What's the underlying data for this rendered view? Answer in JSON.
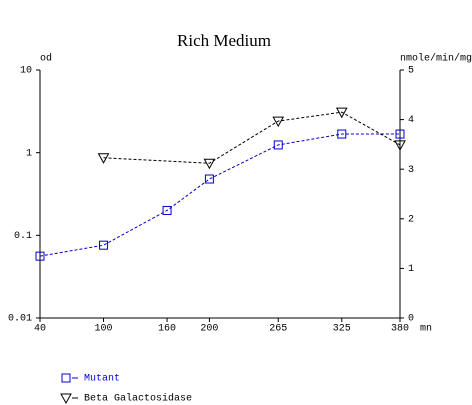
{
  "chart_data": {
    "type": "line",
    "title": "Rich Medium",
    "x_label": "mn",
    "y_label": "od",
    "y2_label": "nmole/min/mg",
    "xlim": [
      40,
      380
    ],
    "xticks": [
      40,
      100,
      160,
      200,
      265,
      325,
      380
    ],
    "ylim": [
      0.01,
      10
    ],
    "yticks": [
      0.01,
      0.1,
      1,
      10
    ],
    "yscale": "log",
    "y2lim": [
      0,
      5
    ],
    "y2ticks": [
      0,
      1,
      2,
      3,
      4,
      5
    ],
    "legend": "bottom-left",
    "series": [
      {
        "name": "Mutant",
        "color": "#0000cc",
        "marker": "square",
        "x": [
          40,
          100,
          160,
          200,
          265,
          325,
          380
        ],
        "values": [
          0.056,
          0.076,
          0.2,
          0.48,
          1.24,
          1.68,
          1.68
        ]
      },
      {
        "name": "Beta Galactosidase",
        "color": "#000000",
        "marker": "triangle-down",
        "axis": "y2",
        "x": [
          100,
          200,
          265,
          325,
          380
        ],
        "values": [
          3.23,
          3.12,
          3.97,
          4.15,
          3.49
        ]
      }
    ]
  }
}
